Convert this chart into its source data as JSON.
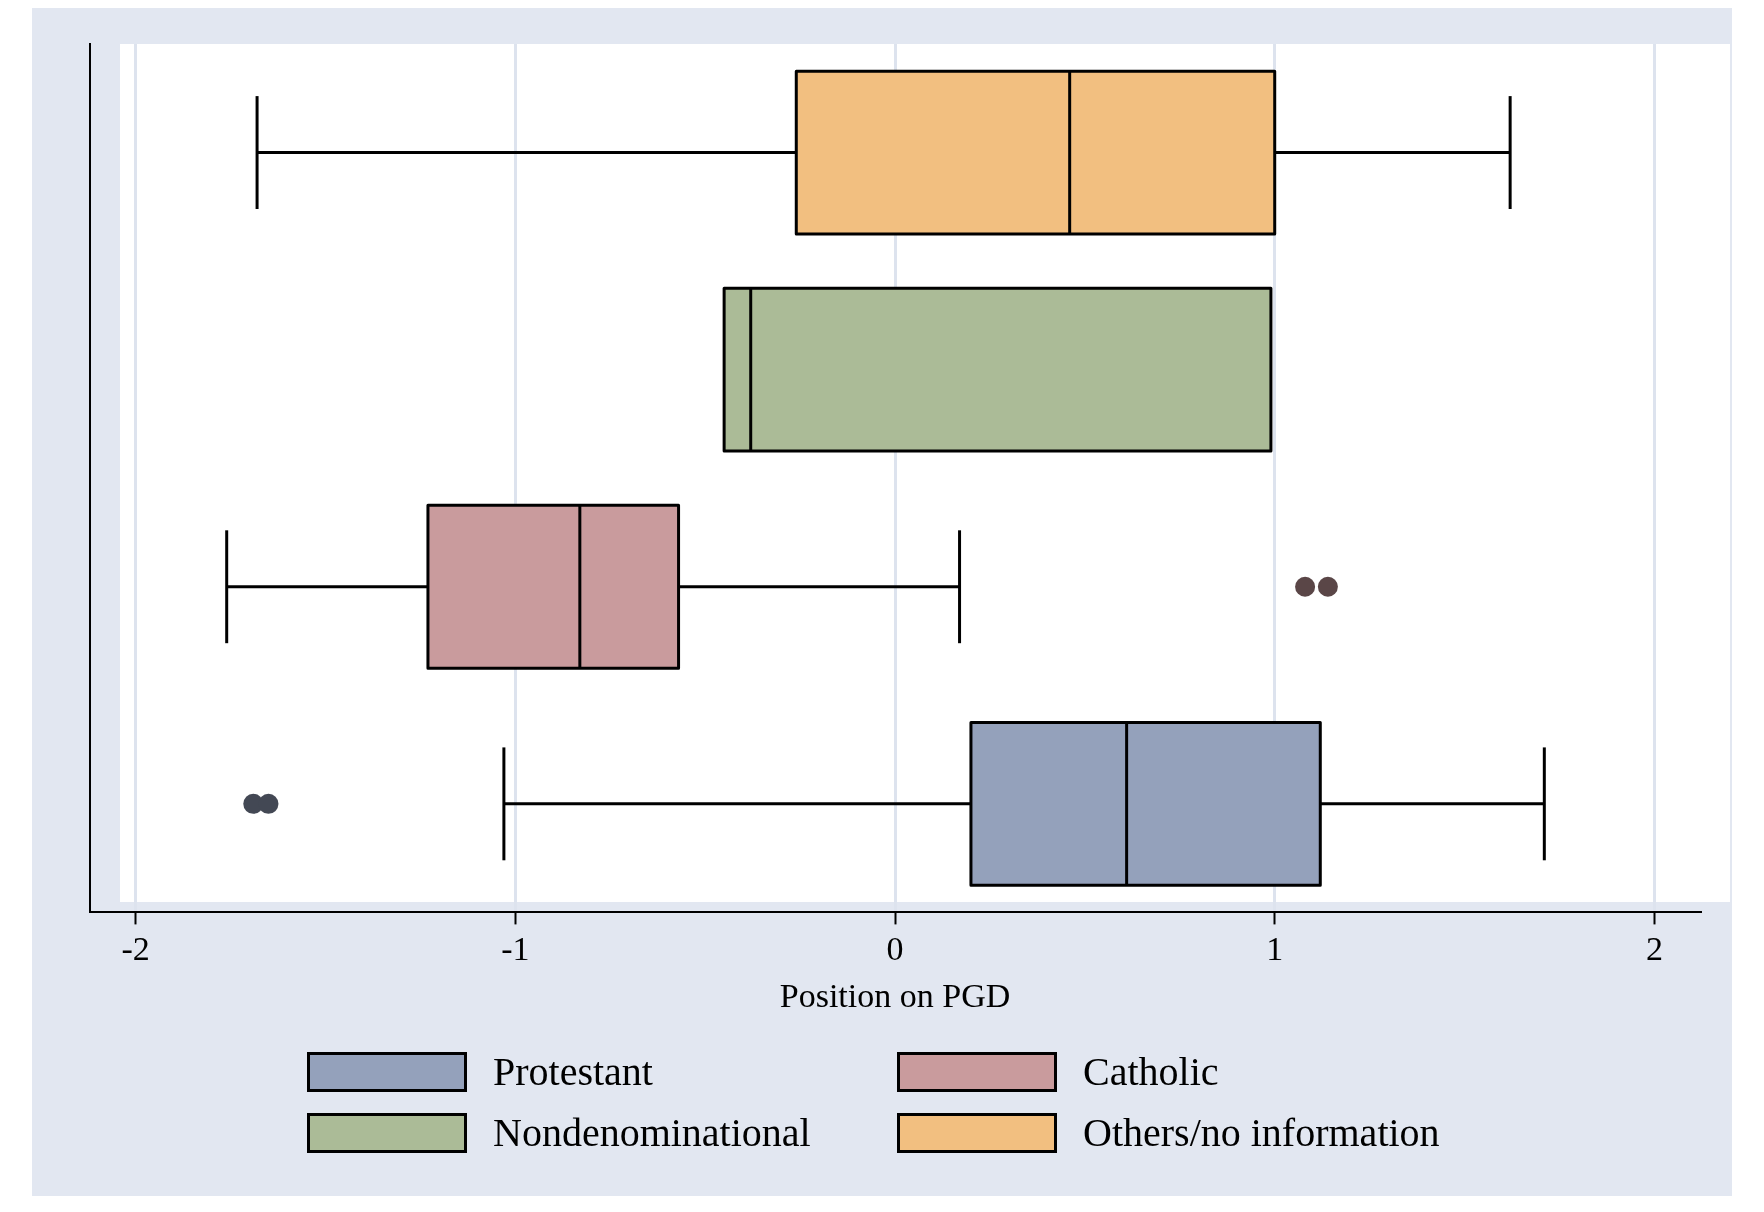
{
  "chart_data": {
    "type": "box",
    "orientation": "horizontal",
    "xlabel": "Position on PGD",
    "categories": [
      null,
      null,
      null,
      null
    ],
    "xlim": [
      -2.12,
      2.12
    ],
    "xticks": [
      -2,
      -1,
      0,
      1,
      2
    ],
    "grid": "x",
    "tick_labels": "x",
    "legend": "bottom",
    "series": [
      {
        "name": "Protestant",
        "color": "#94a1bb",
        "boxes": [
          null,
          null,
          null,
          {
            "low": -1.03,
            "q1": 0.2,
            "median": 0.61,
            "q3": 1.12,
            "high": 1.71,
            "outliers": [
              -1.69,
              -1.65
            ]
          }
        ]
      },
      {
        "name": "Catholic",
        "color": "#c99b9d",
        "boxes": [
          null,
          null,
          {
            "low": -1.76,
            "q1": -1.23,
            "median": -0.83,
            "q3": -0.57,
            "high": 0.17,
            "outliers": [
              1.08,
              1.14
            ]
          },
          null
        ]
      },
      {
        "name": "Nondenominational",
        "color": "#abbb97",
        "boxes": [
          null,
          {
            "low": -0.45,
            "q1": -0.45,
            "median": -0.38,
            "q3": 0.99,
            "high": 0.99
          },
          null,
          null
        ]
      },
      {
        "name": "Others/no information",
        "color": "#f2bf80",
        "boxes": [
          {
            "low": -1.68,
            "q1": -0.26,
            "median": 0.46,
            "q3": 1.0,
            "high": 1.62
          },
          null,
          null,
          null
        ]
      }
    ]
  }
}
